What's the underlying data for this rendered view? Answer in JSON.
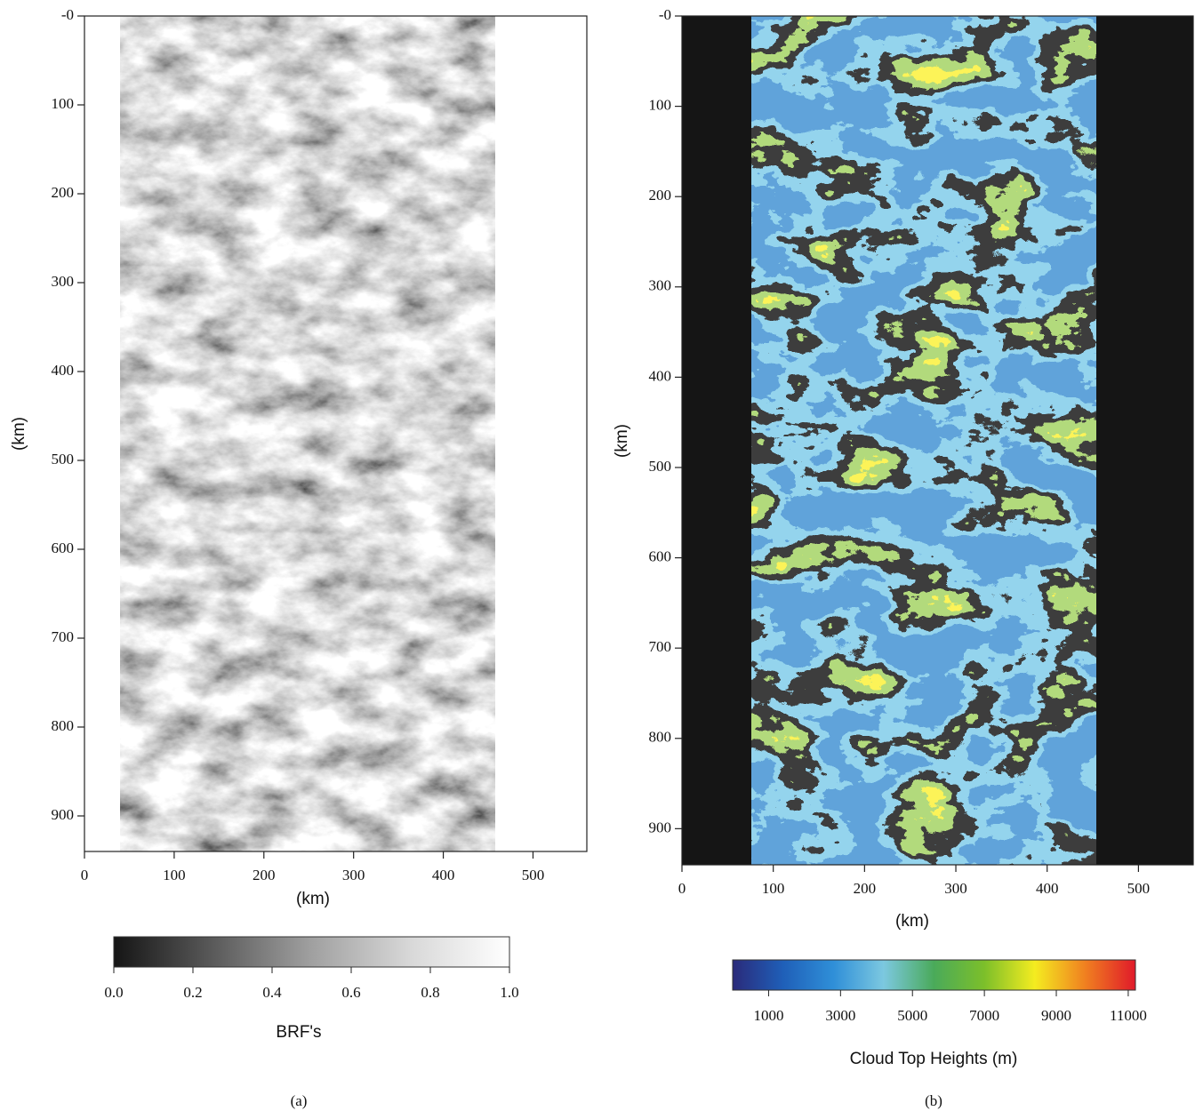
{
  "chart_data": [
    {
      "type": "image",
      "caption": "(a)",
      "xlabel": "(km)",
      "ylabel": "(km)",
      "xlim": [
        0,
        560
      ],
      "xticks": [
        0,
        100,
        200,
        300,
        400,
        500
      ],
      "ylim": [
        0,
        940
      ],
      "y_inverted": true,
      "yticks": [
        {
          "value": 0,
          "label": "-0"
        },
        100,
        200,
        300,
        400,
        500,
        600,
        700,
        800,
        900
      ],
      "colorbar": {
        "label": "BRF's",
        "lim": [
          0,
          1
        ],
        "ticks": [
          {
            "value": 0,
            "label": "0.0"
          },
          0.2,
          0.4,
          0.6,
          0.8,
          {
            "value": 1,
            "label": "1.0"
          }
        ],
        "colors": [
          "#151515",
          "#5a5a5a",
          "#a0a0a0",
          "#d8d8d8",
          "#ffffff"
        ]
      }
    },
    {
      "type": "image",
      "caption": "(b)",
      "xlabel": "(km)",
      "ylabel": "(km)",
      "xlim": [
        0,
        560
      ],
      "xticks": [
        0,
        100,
        200,
        300,
        400,
        500
      ],
      "ylim": [
        0,
        940
      ],
      "y_inverted": true,
      "yticks": [
        {
          "value": 0,
          "label": "-0"
        },
        100,
        200,
        300,
        400,
        500,
        600,
        700,
        800,
        900
      ],
      "colorbar": {
        "label": "Cloud Top Heights (m)",
        "lim": [
          0,
          11200
        ],
        "ticks": [
          1000,
          3000,
          5000,
          7000,
          9000,
          11000
        ],
        "colors": [
          "#2a2a7a",
          "#1f5fb8",
          "#2f8fd8",
          "#7cc8e0",
          "#4aaa5a",
          "#7cbf2a",
          "#f4ec20",
          "#f08020",
          "#e01a2a"
        ]
      }
    }
  ]
}
